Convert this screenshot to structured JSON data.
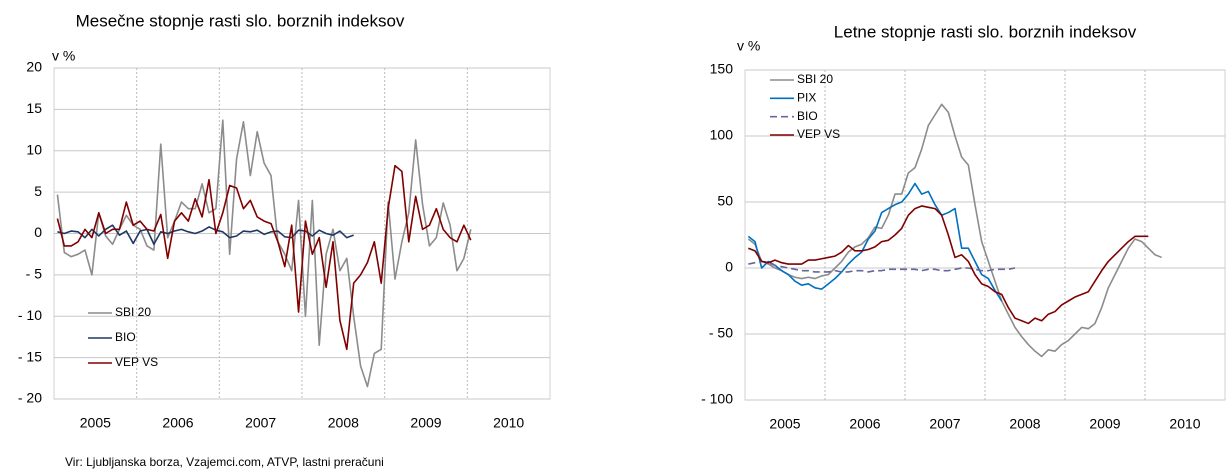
{
  "chart_data": [
    {
      "type": "line",
      "title": "Mesečne stopnje rasti slo. borznih indeksov",
      "ylabel": "v %",
      "categories": [
        null,
        null,
        null,
        null,
        null,
        null,
        "2005",
        null,
        null,
        null,
        null,
        null,
        null,
        null,
        null,
        null,
        null,
        null,
        "2006",
        null,
        null,
        null,
        null,
        null,
        null,
        null,
        null,
        null,
        null,
        null,
        "2007",
        null,
        null,
        null,
        null,
        null,
        null,
        null,
        null,
        null,
        null,
        null,
        "2008",
        null,
        null,
        null,
        null,
        null,
        null,
        null,
        null,
        null,
        null,
        null,
        "2009",
        null,
        null,
        null,
        null,
        null,
        null,
        null,
        null,
        null,
        null,
        null,
        "2010",
        null,
        null,
        null,
        null,
        null
      ],
      "ylim": [
        -20,
        20
      ],
      "yticks": [
        {
          "value": -20,
          "label": "- 20"
        },
        {
          "value": -15,
          "label": "- 15"
        },
        {
          "value": -10,
          "label": "- 10"
        },
        {
          "value": -5,
          "label": "- 5"
        },
        0,
        5,
        10,
        15,
        20
      ],
      "grid": true,
      "legend": "lower left",
      "series": [
        {
          "name": "SBI 20",
          "color": "#8c8c8c",
          "values": [
            4.7,
            -2.3,
            -2.8,
            -2.5,
            -2.0,
            -5.0,
            2.5,
            -0.3,
            -1.3,
            0.5,
            2.2,
            1.0,
            0.5,
            -1.5,
            -2.0,
            10.8,
            -0.5,
            1.5,
            3.8,
            3.0,
            3.0,
            6.0,
            2.5,
            3.0,
            13.7,
            -2.5,
            9.0,
            13.5,
            7.0,
            12.3,
            8.5,
            7.0,
            -1.0,
            -2.5,
            -4.5,
            4.0,
            -10.0,
            4.0,
            -13.5,
            -2.5,
            0.5,
            -4.5,
            -3.0,
            -10.0,
            -16.0,
            -18.5,
            -14.5,
            -14.0,
            3.8,
            -5.5,
            -1.0,
            2.5,
            11.3,
            3.5,
            -1.5,
            -0.5,
            3.7,
            1.0,
            -4.5,
            -3.0,
            0.5,
            null,
            null,
            null,
            null,
            null,
            null,
            null,
            null,
            null,
            null,
            null
          ]
        },
        {
          "name": "BIO",
          "color": "#1f3864",
          "values": [
            0.2,
            0.0,
            0.3,
            0.2,
            -0.5,
            0.5,
            -0.3,
            0.5,
            1.0,
            -0.2,
            0.3,
            -1.2,
            0.3,
            0.5,
            -1.3,
            0.2,
            0.0,
            0.3,
            0.5,
            0.2,
            0.0,
            0.3,
            0.8,
            0.4,
            0.2,
            -0.5,
            -0.3,
            0.3,
            0.2,
            0.4,
            -0.1,
            0.2,
            0.3,
            -0.4,
            -0.5,
            0.4,
            0.3,
            -0.3,
            0.4,
            0.0,
            -0.2,
            0.3,
            -0.5,
            -0.2,
            null,
            null,
            null,
            null,
            null,
            null,
            null,
            null,
            null,
            null,
            null,
            null,
            null,
            null,
            null,
            null,
            null,
            null,
            null,
            null,
            null,
            null,
            null,
            null,
            null,
            null,
            null,
            null
          ]
        },
        {
          "name": "VEP VS",
          "color": "#800000",
          "values": [
            1.8,
            -1.5,
            -1.5,
            -1.0,
            0.5,
            -0.5,
            2.5,
            0.0,
            0.5,
            0.5,
            3.8,
            1.0,
            1.5,
            0.5,
            0.3,
            2.3,
            -3.0,
            1.5,
            2.5,
            1.5,
            4.2,
            2.0,
            6.5,
            0.0,
            2.5,
            5.8,
            5.5,
            3.0,
            4.0,
            2.0,
            1.5,
            1.2,
            -1.0,
            -4.0,
            1.0,
            -9.5,
            1.5,
            -2.5,
            -0.5,
            -6.5,
            -1.0,
            -10.5,
            -14.0,
            -6.0,
            -5.0,
            -3.5,
            -1.0,
            -6.0,
            3.0,
            8.2,
            7.5,
            -1.0,
            4.5,
            0.5,
            1.0,
            3.0,
            0.5,
            -0.5,
            -1.0,
            1.0,
            -0.8,
            null,
            null,
            null,
            null,
            null,
            null,
            null,
            null,
            null,
            null,
            null
          ]
        }
      ]
    },
    {
      "type": "line",
      "title": "Letne stopnje rasti slo. borznih indeksov",
      "ylabel": "v %",
      "categories": [
        null,
        null,
        null,
        null,
        null,
        null,
        "2005",
        null,
        null,
        null,
        null,
        null,
        null,
        null,
        null,
        null,
        null,
        null,
        "2006",
        null,
        null,
        null,
        null,
        null,
        null,
        null,
        null,
        null,
        null,
        null,
        "2007",
        null,
        null,
        null,
        null,
        null,
        null,
        null,
        null,
        null,
        null,
        null,
        "2008",
        null,
        null,
        null,
        null,
        null,
        null,
        null,
        null,
        null,
        null,
        null,
        "2009",
        null,
        null,
        null,
        null,
        null,
        null,
        null,
        null,
        null,
        null,
        null,
        "2010",
        null,
        null,
        null,
        null,
        null
      ],
      "ylim": [
        -100,
        150
      ],
      "yticks": [
        {
          "value": -100,
          "label": "- 100"
        },
        {
          "value": -50,
          "label": "- 50"
        },
        0,
        50,
        100,
        150
      ],
      "grid": true,
      "legend": "upper left",
      "series": [
        {
          "name": "SBI 20",
          "color": "#8c8c8c",
          "values": [
            22,
            18,
            5,
            3,
            0,
            -2,
            -5,
            -7,
            -8,
            -7,
            -8,
            -6,
            -5,
            0,
            5,
            12,
            16,
            18,
            23,
            31,
            30,
            40,
            56,
            56,
            72,
            76,
            90,
            108,
            116,
            124,
            118,
            100,
            84,
            78,
            48,
            20,
            5,
            -10,
            -25,
            -35,
            -45,
            -52,
            -58,
            -63,
            -67,
            -62,
            -63,
            -58,
            -55,
            -50,
            -45,
            -46,
            -42,
            -30,
            -15,
            -5,
            5,
            15,
            22,
            20,
            15,
            10,
            8,
            null,
            null,
            null,
            null,
            null,
            null,
            null,
            null,
            null
          ]
        },
        {
          "name": "PIX",
          "color": "#0070c0",
          "values": [
            24,
            20,
            0,
            5,
            2,
            -2,
            -5,
            -10,
            -13,
            -12,
            -15,
            -16,
            -12,
            -8,
            -3,
            3,
            8,
            12,
            22,
            28,
            42,
            45,
            48,
            50,
            56,
            64,
            56,
            58,
            48,
            40,
            42,
            45,
            15,
            15,
            5,
            -5,
            -8,
            -17,
            -25,
            null,
            null,
            null,
            null,
            null,
            null,
            null,
            null,
            null,
            null,
            null,
            null,
            null,
            null,
            null,
            null,
            null,
            null,
            null,
            null,
            null,
            null,
            null,
            null,
            null,
            null,
            null,
            null,
            null,
            null,
            null,
            null,
            null
          ]
        },
        {
          "name": "BIO",
          "color": "#6666a0",
          "dash": true,
          "values": [
            3,
            4,
            5,
            4,
            2,
            1,
            0,
            -1,
            -2,
            -2,
            -3,
            -3,
            -3,
            -2,
            -3,
            -3,
            -2,
            -2,
            -3,
            -2,
            -2,
            -1,
            -1,
            -1,
            -1,
            -1,
            -2,
            -1,
            -1,
            -2,
            -2,
            -1,
            0,
            0,
            -1,
            -2,
            -2,
            -1,
            -1,
            -1,
            0,
            null,
            null,
            null,
            null,
            null,
            null,
            null,
            null,
            null,
            null,
            null,
            null,
            null,
            null,
            null,
            null,
            null,
            null,
            null,
            null,
            null,
            null,
            null,
            null,
            null,
            null,
            null,
            null,
            null,
            null,
            null
          ]
        },
        {
          "name": "VEP VS",
          "color": "#800000",
          "values": [
            15,
            13,
            5,
            4,
            6,
            4,
            3,
            3,
            3,
            6,
            6,
            7,
            8,
            9,
            12,
            17,
            13,
            13,
            14,
            16,
            20,
            21,
            25,
            30,
            40,
            45,
            47,
            46,
            45,
            40,
            25,
            8,
            10,
            5,
            -5,
            -12,
            -14,
            -18,
            -20,
            -30,
            -38,
            -40,
            -42,
            -38,
            -40,
            -35,
            -33,
            -28,
            -25,
            -22,
            -20,
            -18,
            -10,
            -2,
            5,
            10,
            15,
            20,
            24,
            24,
            24,
            null,
            null,
            null,
            null,
            null,
            null,
            null,
            null,
            null,
            null,
            null
          ]
        }
      ]
    }
  ],
  "source": "Vir: Ljubljanska borza, Vzajemci.com, ATVP, lastni preračuni"
}
